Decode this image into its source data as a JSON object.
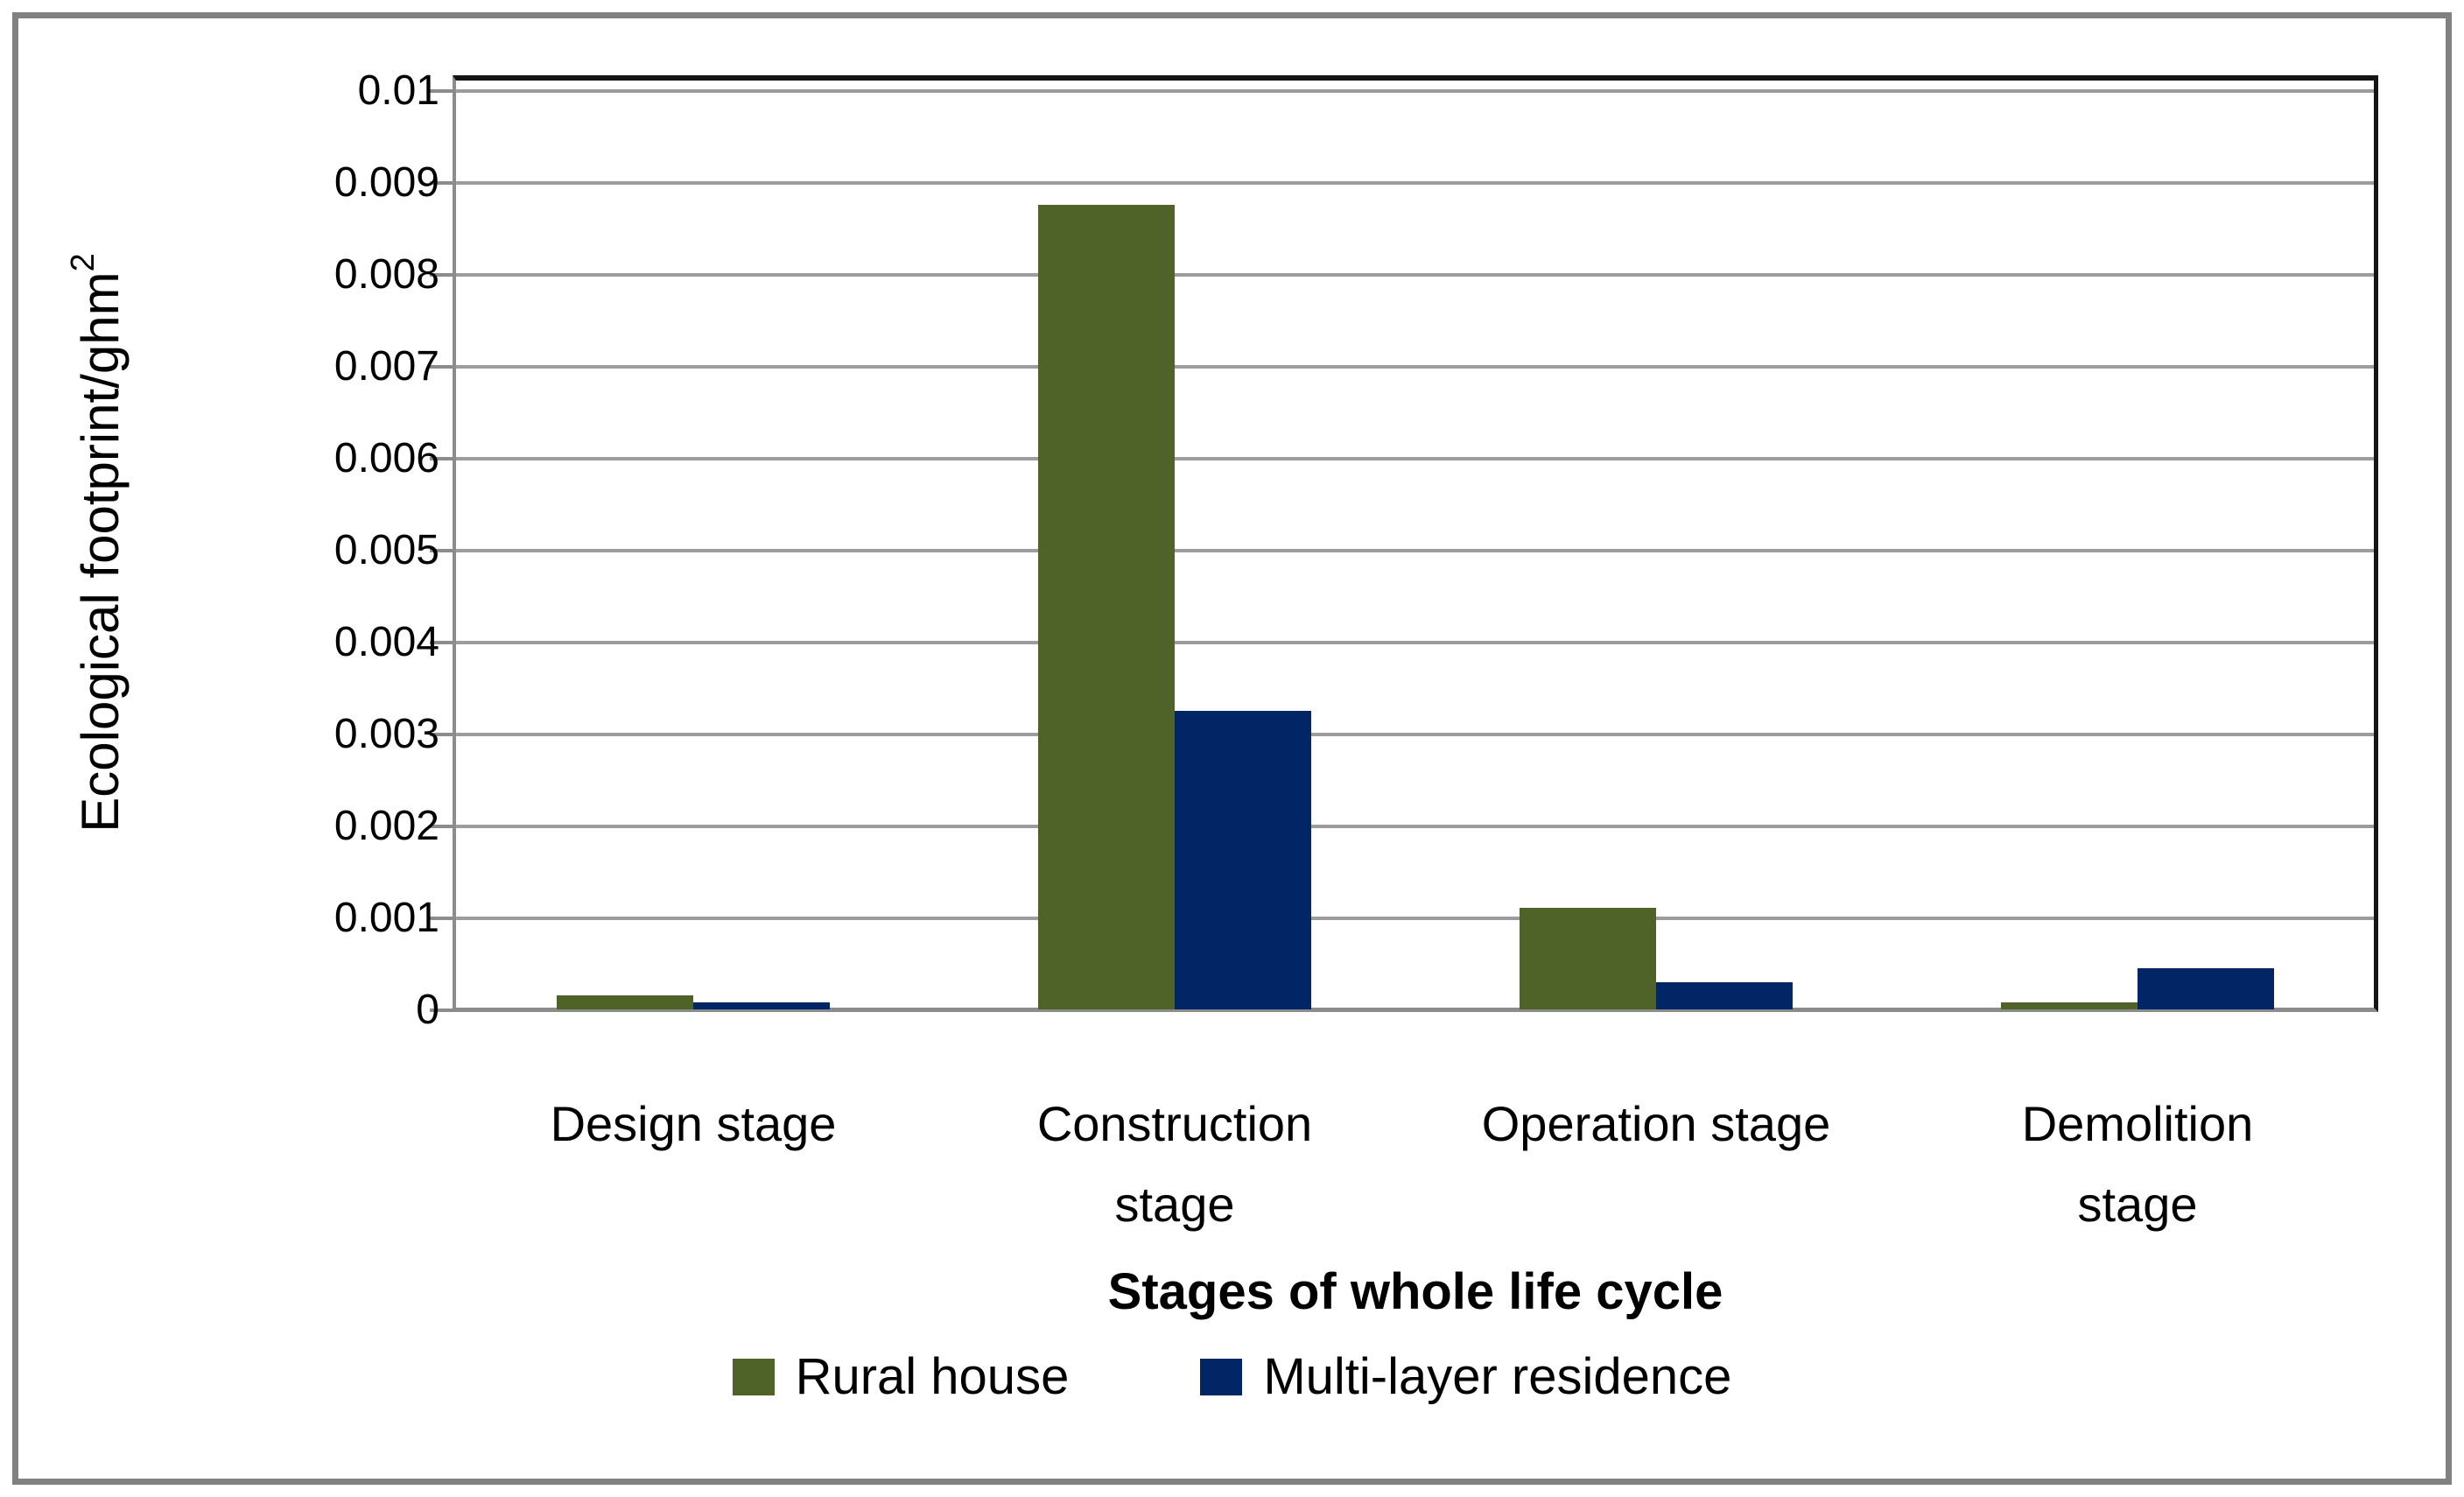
{
  "colors": {
    "rural_house": "#4f6228",
    "multi_layer_residence": "#022566",
    "gridline": "#9c9c9c",
    "axis_line": "#8c8c8c",
    "plot_border": "#141414",
    "figure_border": "#808080",
    "text": "#000000",
    "background": "#ffffff"
  },
  "chart_data": {
    "type": "bar",
    "title": "",
    "xlabel": "Stages of whole life cycle",
    "ylabel": "Ecological footprint/ghm²",
    "ylabel_base": "Ecological footprint/ghm",
    "ylabel_sup": "2",
    "categories": [
      "Design stage",
      "Construction stage",
      "Operation stage",
      "Demolition stage"
    ],
    "category_lines": [
      [
        "Design stage"
      ],
      [
        "Construction",
        "stage"
      ],
      [
        "Operation stage"
      ],
      [
        "Demolition",
        "stage"
      ]
    ],
    "series": [
      {
        "name": "Rural house",
        "color": "#4f6228",
        "values": [
          0.00015,
          0.00875,
          0.0011,
          8e-05
        ]
      },
      {
        "name": "Multi-layer residence",
        "color": "#022566",
        "values": [
          8e-05,
          0.00325,
          0.0003,
          0.00045
        ]
      }
    ],
    "ylim": [
      0,
      0.01
    ],
    "ytick_interval": 0.001,
    "ytick_labels_top_to_bottom": [
      "0.01",
      "0.009",
      "0.008",
      "0.007",
      "0.006",
      "0.005",
      "0.004",
      "0.003",
      "0.002",
      "0.001",
      "0"
    ],
    "grid": "horizontal gridlines on",
    "legend_position": "bottom"
  }
}
